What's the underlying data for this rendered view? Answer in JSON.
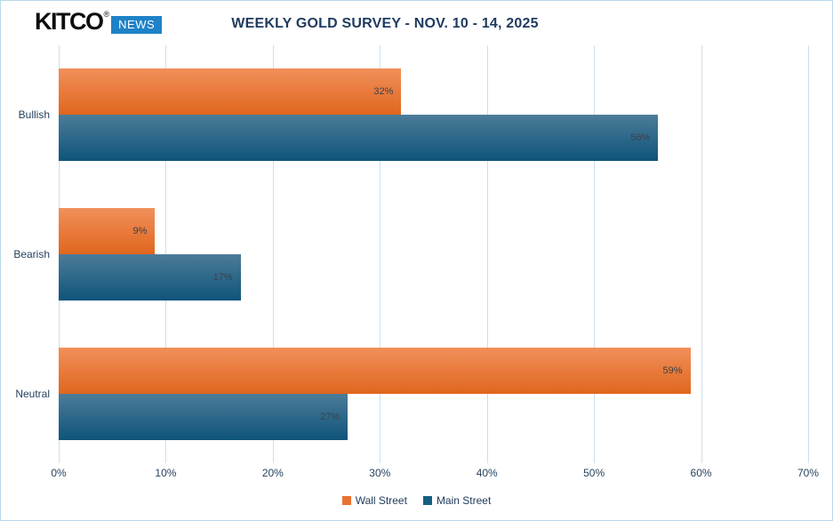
{
  "logo": {
    "brand": "KITCO",
    "registered": "®",
    "badge": "NEWS"
  },
  "header": {
    "title": "WEEKLY GOLD SURVEY - NOV. 10 - 14, 2025"
  },
  "chart_data": {
    "type": "bar",
    "orientation": "horizontal",
    "title": "WEEKLY GOLD SURVEY - NOV. 10 - 14, 2025",
    "categories": [
      "Bullish",
      "Bearish",
      "Neutral"
    ],
    "series": [
      {
        "name": "Wall Street",
        "values": [
          32,
          9,
          59
        ],
        "labels": [
          "32%",
          "9%",
          "59%"
        ],
        "color": "#E97132"
      },
      {
        "name": "Main Street",
        "values": [
          56,
          17,
          27
        ],
        "labels": [
          "56%",
          "17%",
          "27%"
        ],
        "color": "#156082"
      }
    ],
    "xlim": [
      0,
      70
    ],
    "x_ticks": [
      "0%",
      "10%",
      "20%",
      "30%",
      "40%",
      "50%",
      "60%",
      "70%"
    ],
    "grid": "vertical-light-blue",
    "legend_position": "bottom-center"
  },
  "colors": {
    "wall_street": "#E97132",
    "wall_street_gradient": [
      "#F1905A",
      "#E0661E"
    ],
    "main_street": "#156082",
    "main_street_gradient": [
      "#4C7C98",
      "#0F547B"
    ],
    "title_text": "#1E3A5F",
    "axis_text": "#26425F",
    "data_label_text": "#3C4049",
    "gridline": "#CCE0EE",
    "frame_border": "#B9D7EA",
    "logo_badge_bg": "#1E82C8",
    "background": "#FFFFFF"
  }
}
